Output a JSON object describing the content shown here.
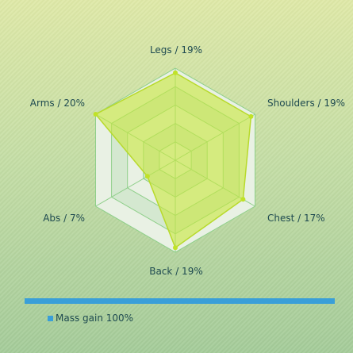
{
  "chart_data": {
    "type": "radar",
    "axes": [
      "Legs / 19%",
      "Shoulders / 19%",
      "Chest / 17%",
      "Back / 19%",
      "Abs / 7%",
      "Arms / 20%"
    ],
    "series": [
      {
        "name": "Mass gain",
        "values": [
          19,
          19,
          17,
          19,
          7,
          20
        ]
      }
    ],
    "rmax": 20,
    "rings": 5,
    "grid": true,
    "legend": {
      "position": "bottom-left",
      "label": "Mass gain 100%"
    },
    "colors": {
      "fill": "#c8e640",
      "stroke": "#b8da2c",
      "point": "#c0e228",
      "grid": "#8fcf8a",
      "band_light": "#e9f1e4",
      "band_dark": "#d4e8d0",
      "legend": "#3a9fd8"
    }
  },
  "progress": {
    "value": 100,
    "label": "Mass gain 100%"
  }
}
